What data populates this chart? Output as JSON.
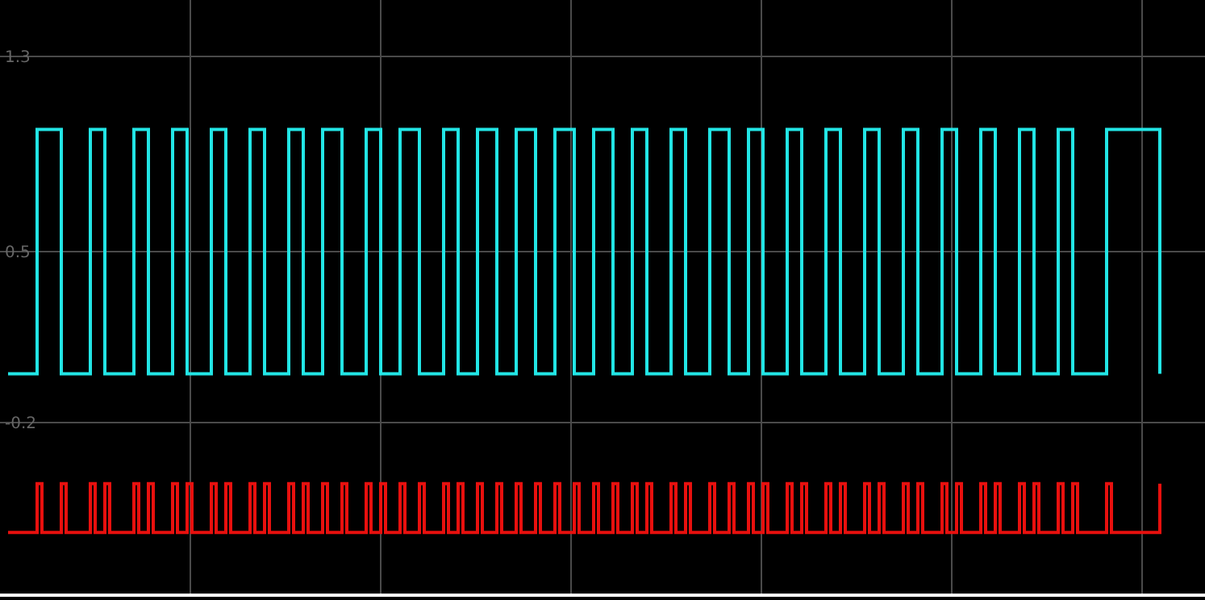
{
  "chart_data": {
    "type": "step",
    "categories": [
      null,
      null,
      null,
      null,
      null,
      null,
      null,
      null,
      null,
      null,
      null,
      null,
      null,
      null,
      null,
      null,
      null,
      null,
      null,
      null,
      null,
      null,
      null,
      null,
      null,
      null,
      null,
      null,
      null,
      null,
      null,
      null,
      null,
      null,
      null,
      null,
      null,
      null,
      null,
      null,
      null,
      null,
      null,
      null,
      null,
      null,
      null,
      null,
      null,
      null,
      null,
      null,
      null,
      null,
      null,
      null,
      null,
      null,
      null,
      null,
      null,
      null,
      null,
      null,
      null,
      null,
      null,
      null,
      null,
      null,
      null,
      null,
      null,
      null,
      null,
      null,
      null,
      null,
      null,
      null,
      null,
      null,
      null,
      null,
      null,
      null,
      null,
      null,
      null,
      null,
      null,
      null,
      null,
      null,
      null,
      null,
      null,
      null,
      null,
      null,
      null,
      null,
      null,
      null,
      null,
      null,
      null,
      null,
      null,
      null,
      null,
      null,
      null,
      null,
      null,
      null,
      null,
      null,
      null,
      null,
      null,
      null,
      null,
      null,
      null,
      null,
      null,
      null,
      null,
      null,
      null,
      null,
      null,
      null,
      null,
      null,
      null,
      null,
      null,
      null,
      null,
      null,
      null,
      null,
      null,
      null,
      null,
      null,
      null,
      null,
      null,
      null,
      null,
      null,
      null,
      null,
      null,
      null,
      null,
      null,
      null,
      null,
      null,
      null,
      null,
      null,
      null,
      null,
      null,
      null,
      null,
      null,
      null,
      null,
      null,
      null,
      null,
      null,
      null,
      null,
      null,
      null,
      null,
      null,
      null,
      null,
      null,
      null,
      null,
      null,
      null,
      null,
      null,
      null,
      null,
      null,
      null,
      null,
      null,
      null,
      null,
      null,
      null,
      null,
      null,
      null,
      null,
      null,
      null,
      null,
      null,
      null,
      null,
      null,
      null,
      null,
      null,
      null,
      null,
      null,
      null,
      null,
      null,
      null,
      null,
      null,
      null,
      null,
      null,
      null,
      null,
      null,
      null,
      null,
      null,
      null,
      null,
      null,
      null
    ],
    "ylim": [
      -0.9,
      1.53
    ],
    "yticks": [
      -0.2,
      0.5,
      1.3
    ],
    "grid": true,
    "tick_labels": "y",
    "marker": "none",
    "line_style": "solid",
    "series": [
      {
        "color": "#22e5e5",
        "values": [
          0,
          0,
          0,
          0,
          0,
          0,
          1,
          1,
          1,
          1,
          1,
          0,
          0,
          0,
          0,
          0,
          0,
          1,
          1,
          1,
          0,
          0,
          0,
          0,
          0,
          0,
          1,
          1,
          1,
          0,
          0,
          0,
          0,
          0,
          1,
          1,
          1,
          0,
          0,
          0,
          0,
          0,
          1,
          1,
          1,
          0,
          0,
          0,
          0,
          0,
          1,
          1,
          1,
          0,
          0,
          0,
          0,
          0,
          1,
          1,
          1,
          0,
          0,
          0,
          0,
          1,
          1,
          1,
          1,
          0,
          0,
          0,
          0,
          0,
          1,
          1,
          1,
          0,
          0,
          0,
          0,
          1,
          1,
          1,
          1,
          0,
          0,
          0,
          0,
          0,
          1,
          1,
          1,
          0,
          0,
          0,
          0,
          1,
          1,
          1,
          1,
          0,
          0,
          0,
          0,
          1,
          1,
          1,
          1,
          0,
          0,
          0,
          0,
          1,
          1,
          1,
          1,
          0,
          0,
          0,
          0,
          1,
          1,
          1,
          1,
          0,
          0,
          0,
          0,
          1,
          1,
          1,
          0,
          0,
          0,
          0,
          0,
          1,
          1,
          1,
          0,
          0,
          0,
          0,
          0,
          1,
          1,
          1,
          1,
          0,
          0,
          0,
          0,
          1,
          1,
          1,
          0,
          0,
          0,
          0,
          0,
          1,
          1,
          1,
          0,
          0,
          0,
          0,
          0,
          1,
          1,
          1,
          0,
          0,
          0,
          0,
          0,
          1,
          1,
          1,
          0,
          0,
          0,
          0,
          0,
          1,
          1,
          1,
          0,
          0,
          0,
          0,
          0,
          1,
          1,
          1,
          0,
          0,
          0,
          0,
          0,
          1,
          1,
          1,
          0,
          0,
          0,
          0,
          0,
          1,
          1,
          1,
          0,
          0,
          0,
          0,
          0,
          1,
          1,
          1,
          0,
          0,
          0,
          0,
          0,
          0,
          0,
          1,
          1,
          1,
          1,
          1,
          1,
          1,
          1,
          1,
          1,
          1,
          0
        ]
      },
      {
        "color": "#e8100e",
        "values": [
          -0.65,
          -0.65,
          -0.65,
          -0.65,
          -0.65,
          -0.65,
          -0.45,
          -0.65,
          -0.65,
          -0.65,
          -0.65,
          -0.45,
          -0.65,
          -0.65,
          -0.65,
          -0.65,
          -0.65,
          -0.45,
          -0.65,
          -0.65,
          -0.45,
          -0.65,
          -0.65,
          -0.65,
          -0.65,
          -0.65,
          -0.45,
          -0.65,
          -0.65,
          -0.45,
          -0.65,
          -0.65,
          -0.65,
          -0.65,
          -0.45,
          -0.65,
          -0.65,
          -0.45,
          -0.65,
          -0.65,
          -0.65,
          -0.65,
          -0.45,
          -0.65,
          -0.65,
          -0.45,
          -0.65,
          -0.65,
          -0.65,
          -0.65,
          -0.45,
          -0.65,
          -0.65,
          -0.45,
          -0.65,
          -0.65,
          -0.65,
          -0.65,
          -0.45,
          -0.65,
          -0.65,
          -0.45,
          -0.65,
          -0.65,
          -0.65,
          -0.45,
          -0.65,
          -0.65,
          -0.65,
          -0.45,
          -0.65,
          -0.65,
          -0.65,
          -0.65,
          -0.45,
          -0.65,
          -0.65,
          -0.45,
          -0.65,
          -0.65,
          -0.65,
          -0.45,
          -0.65,
          -0.65,
          -0.65,
          -0.45,
          -0.65,
          -0.65,
          -0.65,
          -0.65,
          -0.45,
          -0.65,
          -0.65,
          -0.45,
          -0.65,
          -0.65,
          -0.65,
          -0.45,
          -0.65,
          -0.65,
          -0.65,
          -0.45,
          -0.65,
          -0.65,
          -0.65,
          -0.45,
          -0.65,
          -0.65,
          -0.65,
          -0.45,
          -0.65,
          -0.65,
          -0.65,
          -0.45,
          -0.65,
          -0.65,
          -0.65,
          -0.45,
          -0.65,
          -0.65,
          -0.65,
          -0.45,
          -0.65,
          -0.65,
          -0.65,
          -0.45,
          -0.65,
          -0.65,
          -0.65,
          -0.45,
          -0.65,
          -0.65,
          -0.45,
          -0.65,
          -0.65,
          -0.65,
          -0.65,
          -0.45,
          -0.65,
          -0.65,
          -0.45,
          -0.65,
          -0.65,
          -0.65,
          -0.65,
          -0.45,
          -0.65,
          -0.65,
          -0.65,
          -0.45,
          -0.65,
          -0.65,
          -0.65,
          -0.45,
          -0.65,
          -0.65,
          -0.45,
          -0.65,
          -0.65,
          -0.65,
          -0.65,
          -0.45,
          -0.65,
          -0.65,
          -0.45,
          -0.65,
          -0.65,
          -0.65,
          -0.65,
          -0.45,
          -0.65,
          -0.65,
          -0.45,
          -0.65,
          -0.65,
          -0.65,
          -0.65,
          -0.45,
          -0.65,
          -0.65,
          -0.45,
          -0.65,
          -0.65,
          -0.65,
          -0.65,
          -0.45,
          -0.65,
          -0.65,
          -0.45,
          -0.65,
          -0.65,
          -0.65,
          -0.65,
          -0.45,
          -0.65,
          -0.65,
          -0.45,
          -0.65,
          -0.65,
          -0.65,
          -0.65,
          -0.45,
          -0.65,
          -0.65,
          -0.45,
          -0.65,
          -0.65,
          -0.65,
          -0.65,
          -0.45,
          -0.65,
          -0.65,
          -0.45,
          -0.65,
          -0.65,
          -0.65,
          -0.65,
          -0.45,
          -0.65,
          -0.65,
          -0.45,
          -0.65,
          -0.65,
          -0.65,
          -0.65,
          -0.65,
          -0.65,
          -0.45,
          -0.65,
          -0.65,
          -0.65,
          -0.65,
          -0.65,
          -0.65,
          -0.65,
          -0.65,
          -0.65,
          -0.65,
          -0.45
        ]
      }
    ]
  }
}
